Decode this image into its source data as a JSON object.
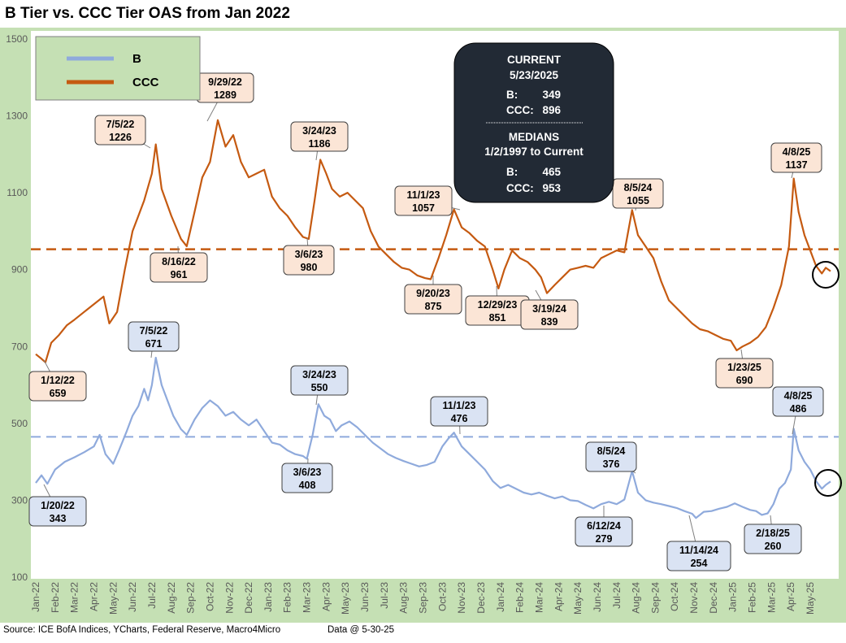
{
  "title": "B Tier vs. CCC Tier OAS from Jan 2022",
  "footer": {
    "source": "Source: ICE BofA Indices, YCharts, Federal Reserve, Macro4Micro",
    "data_as_of": "Data @ 5-30-25"
  },
  "chart_data": {
    "type": "line",
    "title": "B Tier vs. CCC Tier OAS from Jan 2022",
    "xlabel": "",
    "ylabel": "",
    "ylim": [
      100,
      1500
    ],
    "yticks": [
      100,
      300,
      500,
      700,
      900,
      1100,
      1300,
      1500
    ],
    "ytick_labels": [
      "100",
      "300",
      "500",
      "700",
      "900",
      "1100",
      "1300",
      "1500"
    ],
    "xticks": [
      "Jan-22",
      "Feb-22",
      "Mar-22",
      "Apr-22",
      "May-22",
      "Jun-22",
      "Jul-22",
      "Aug-22",
      "Sep-22",
      "Oct-22",
      "Nov-22",
      "Dec-22",
      "Jan-23",
      "Feb-23",
      "Mar-23",
      "Apr-23",
      "May-23",
      "Jun-23",
      "Jul-23",
      "Aug-23",
      "Sep-23",
      "Oct-23",
      "Nov-23",
      "Dec-23",
      "Jan-24",
      "Feb-24",
      "Mar-24",
      "Apr-24",
      "May-24",
      "Jun-24",
      "Jul-24",
      "Aug-24",
      "Sep-24",
      "Oct-24",
      "Nov-24",
      "Dec-24",
      "Jan-25",
      "Feb-25",
      "Mar-25",
      "Apr-25",
      "May-25"
    ],
    "legend_position": "top-left",
    "series": [
      {
        "name": "B",
        "color": "#8faadc",
        "median": 465,
        "points": [
          [
            0,
            345
          ],
          [
            0.3,
            365
          ],
          [
            0.6,
            343
          ],
          [
            1,
            380
          ],
          [
            1.5,
            400
          ],
          [
            2,
            412
          ],
          [
            2.5,
            425
          ],
          [
            3,
            440
          ],
          [
            3.3,
            470
          ],
          [
            3.6,
            420
          ],
          [
            4,
            395
          ],
          [
            4.3,
            430
          ],
          [
            4.7,
            480
          ],
          [
            5,
            520
          ],
          [
            5.3,
            545
          ],
          [
            5.6,
            590
          ],
          [
            5.8,
            560
          ],
          [
            6,
            600
          ],
          [
            6.2,
            671
          ],
          [
            6.5,
            600
          ],
          [
            6.8,
            560
          ],
          [
            7.1,
            520
          ],
          [
            7.5,
            485
          ],
          [
            7.8,
            470
          ],
          [
            8.2,
            510
          ],
          [
            8.6,
            540
          ],
          [
            9,
            560
          ],
          [
            9.4,
            545
          ],
          [
            9.8,
            520
          ],
          [
            10.2,
            530
          ],
          [
            10.6,
            510
          ],
          [
            11,
            495
          ],
          [
            11.4,
            510
          ],
          [
            11.8,
            480
          ],
          [
            12.2,
            450
          ],
          [
            12.6,
            445
          ],
          [
            13,
            430
          ],
          [
            13.4,
            420
          ],
          [
            13.8,
            415
          ],
          [
            14,
            408
          ],
          [
            14.3,
            470
          ],
          [
            14.6,
            550
          ],
          [
            14.9,
            520
          ],
          [
            15.2,
            510
          ],
          [
            15.5,
            480
          ],
          [
            15.8,
            495
          ],
          [
            16.2,
            505
          ],
          [
            16.6,
            490
          ],
          [
            17,
            470
          ],
          [
            17.4,
            450
          ],
          [
            17.8,
            435
          ],
          [
            18.2,
            420
          ],
          [
            18.6,
            410
          ],
          [
            19,
            402
          ],
          [
            19.4,
            395
          ],
          [
            19.8,
            388
          ],
          [
            20.2,
            392
          ],
          [
            20.6,
            400
          ],
          [
            21,
            440
          ],
          [
            21.3,
            460
          ],
          [
            21.6,
            476
          ],
          [
            22,
            440
          ],
          [
            22.4,
            420
          ],
          [
            22.8,
            400
          ],
          [
            23.2,
            380
          ],
          [
            23.6,
            350
          ],
          [
            24,
            332
          ],
          [
            24.4,
            340
          ],
          [
            24.8,
            330
          ],
          [
            25.2,
            320
          ],
          [
            25.6,
            315
          ],
          [
            26,
            320
          ],
          [
            26.4,
            312
          ],
          [
            26.8,
            305
          ],
          [
            27.2,
            310
          ],
          [
            27.6,
            300
          ],
          [
            28,
            298
          ],
          [
            28.4,
            288
          ],
          [
            28.8,
            279
          ],
          [
            29.2,
            290
          ],
          [
            29.6,
            296
          ],
          [
            30,
            290
          ],
          [
            30.4,
            302
          ],
          [
            30.8,
            376
          ],
          [
            31.1,
            320
          ],
          [
            31.5,
            300
          ],
          [
            31.9,
            294
          ],
          [
            32.3,
            290
          ],
          [
            32.7,
            285
          ],
          [
            33.1,
            280
          ],
          [
            33.5,
            272
          ],
          [
            33.9,
            265
          ],
          [
            34.1,
            254
          ],
          [
            34.5,
            270
          ],
          [
            34.9,
            272
          ],
          [
            35.3,
            278
          ],
          [
            35.7,
            283
          ],
          [
            36.1,
            292
          ],
          [
            36.5,
            283
          ],
          [
            36.9,
            275
          ],
          [
            37.2,
            272
          ],
          [
            37.5,
            262
          ],
          [
            37.8,
            266
          ],
          [
            38.1,
            290
          ],
          [
            38.4,
            330
          ],
          [
            38.7,
            345
          ],
          [
            39,
            380
          ],
          [
            39.15,
            486
          ],
          [
            39.4,
            430
          ],
          [
            39.7,
            400
          ],
          [
            40,
            380
          ],
          [
            40.3,
            350
          ],
          [
            40.6,
            330
          ],
          [
            40.8,
            340
          ],
          [
            41.05,
            349
          ]
        ]
      },
      {
        "name": "CCC",
        "color": "#c55a11",
        "median": 953,
        "points": [
          [
            0,
            680
          ],
          [
            0.3,
            668
          ],
          [
            0.5,
            659
          ],
          [
            0.8,
            710
          ],
          [
            1.2,
            730
          ],
          [
            1.6,
            755
          ],
          [
            2,
            770
          ],
          [
            2.5,
            790
          ],
          [
            3,
            810
          ],
          [
            3.5,
            830
          ],
          [
            3.8,
            760
          ],
          [
            4.2,
            790
          ],
          [
            4.6,
            900
          ],
          [
            5,
            1000
          ],
          [
            5.3,
            1040
          ],
          [
            5.6,
            1080
          ],
          [
            6,
            1150
          ],
          [
            6.2,
            1226
          ],
          [
            6.5,
            1110
          ],
          [
            7,
            1040
          ],
          [
            7.5,
            980
          ],
          [
            7.8,
            961
          ],
          [
            8.2,
            1050
          ],
          [
            8.6,
            1140
          ],
          [
            9,
            1180
          ],
          [
            9.4,
            1289
          ],
          [
            9.8,
            1220
          ],
          [
            10.2,
            1250
          ],
          [
            10.6,
            1180
          ],
          [
            11,
            1140
          ],
          [
            11.4,
            1150
          ],
          [
            11.8,
            1160
          ],
          [
            12.2,
            1090
          ],
          [
            12.6,
            1060
          ],
          [
            13,
            1040
          ],
          [
            13.4,
            1010
          ],
          [
            13.8,
            985
          ],
          [
            14.1,
            980
          ],
          [
            14.4,
            1080
          ],
          [
            14.7,
            1186
          ],
          [
            15,
            1150
          ],
          [
            15.3,
            1110
          ],
          [
            15.7,
            1090
          ],
          [
            16.1,
            1100
          ],
          [
            16.5,
            1080
          ],
          [
            16.9,
            1060
          ],
          [
            17.3,
            1000
          ],
          [
            17.7,
            960
          ],
          [
            18.1,
            940
          ],
          [
            18.5,
            920
          ],
          [
            18.9,
            905
          ],
          [
            19.3,
            900
          ],
          [
            19.7,
            885
          ],
          [
            20.1,
            878
          ],
          [
            20.4,
            875
          ],
          [
            20.8,
            930
          ],
          [
            21.2,
            990
          ],
          [
            21.6,
            1057
          ],
          [
            22,
            1010
          ],
          [
            22.4,
            995
          ],
          [
            22.8,
            975
          ],
          [
            23.2,
            960
          ],
          [
            23.6,
            900
          ],
          [
            23.9,
            851
          ],
          [
            24.2,
            900
          ],
          [
            24.6,
            950
          ],
          [
            25,
            930
          ],
          [
            25.4,
            920
          ],
          [
            25.8,
            900
          ],
          [
            26.1,
            880
          ],
          [
            26.4,
            839
          ],
          [
            26.8,
            860
          ],
          [
            27.2,
            880
          ],
          [
            27.6,
            900
          ],
          [
            28,
            905
          ],
          [
            28.4,
            910
          ],
          [
            28.8,
            905
          ],
          [
            29.2,
            930
          ],
          [
            29.6,
            940
          ],
          [
            30,
            950
          ],
          [
            30.4,
            945
          ],
          [
            30.8,
            1055
          ],
          [
            31.1,
            990
          ],
          [
            31.5,
            960
          ],
          [
            31.9,
            930
          ],
          [
            32.3,
            870
          ],
          [
            32.7,
            820
          ],
          [
            33.1,
            800
          ],
          [
            33.5,
            780
          ],
          [
            33.9,
            760
          ],
          [
            34.3,
            745
          ],
          [
            34.7,
            740
          ],
          [
            35.1,
            730
          ],
          [
            35.5,
            720
          ],
          [
            35.9,
            715
          ],
          [
            36.2,
            690
          ],
          [
            36.5,
            700
          ],
          [
            36.9,
            710
          ],
          [
            37.3,
            725
          ],
          [
            37.7,
            750
          ],
          [
            38.1,
            800
          ],
          [
            38.5,
            860
          ],
          [
            38.9,
            960
          ],
          [
            39.15,
            1137
          ],
          [
            39.4,
            1050
          ],
          [
            39.7,
            990
          ],
          [
            40,
            950
          ],
          [
            40.3,
            910
          ],
          [
            40.6,
            890
          ],
          [
            40.8,
            905
          ],
          [
            41.05,
            896
          ]
        ]
      }
    ],
    "annotations": [
      {
        "series": "CCC",
        "date": "7/5/22",
        "value": "1226"
      },
      {
        "series": "CCC",
        "date": "9/29/22",
        "value": "1289"
      },
      {
        "series": "CCC",
        "date": "3/24/23",
        "value": "1186"
      },
      {
        "series": "CCC",
        "date": "11/1/23",
        "value": "1057"
      },
      {
        "series": "CCC",
        "date": "8/5/24",
        "value": "1055"
      },
      {
        "series": "CCC",
        "date": "4/8/25",
        "value": "1137"
      },
      {
        "series": "CCC",
        "date": "8/16/22",
        "value": "961"
      },
      {
        "series": "CCC",
        "date": "3/6/23",
        "value": "980"
      },
      {
        "series": "CCC",
        "date": "9/20/23",
        "value": "875"
      },
      {
        "series": "CCC",
        "date": "12/29/23",
        "value": "851"
      },
      {
        "series": "CCC",
        "date": "3/19/24",
        "value": "839"
      },
      {
        "series": "CCC",
        "date": "1/12/22",
        "value": "659"
      },
      {
        "series": "CCC",
        "date": "1/23/25",
        "value": "690"
      },
      {
        "series": "B",
        "date": "7/5/22",
        "value": "671"
      },
      {
        "series": "B",
        "date": "3/24/23",
        "value": "550"
      },
      {
        "series": "B",
        "date": "11/1/23",
        "value": "476"
      },
      {
        "series": "B",
        "date": "4/8/25",
        "value": "486"
      },
      {
        "series": "B",
        "date": "8/5/24",
        "value": "376"
      },
      {
        "series": "B",
        "date": "3/6/23",
        "value": "408"
      },
      {
        "series": "B",
        "date": "1/20/22",
        "value": "343"
      },
      {
        "series": "B",
        "date": "6/12/24",
        "value": "279"
      },
      {
        "series": "B",
        "date": "11/14/24",
        "value": "254"
      },
      {
        "series": "B",
        "date": "2/18/25",
        "value": "260"
      }
    ],
    "info_box": {
      "current_header": "CURRENT",
      "current_date": "5/23/2025",
      "current_b_label": "B:",
      "current_b_value": "349",
      "current_ccc_label": "CCC:",
      "current_ccc_value": "896",
      "medians_header": "MEDIANS",
      "medians_range": "1/2/1997 to Current",
      "median_b_label": "B:",
      "median_b_value": "465",
      "median_ccc_label": "CCC:",
      "median_ccc_value": "953"
    }
  }
}
